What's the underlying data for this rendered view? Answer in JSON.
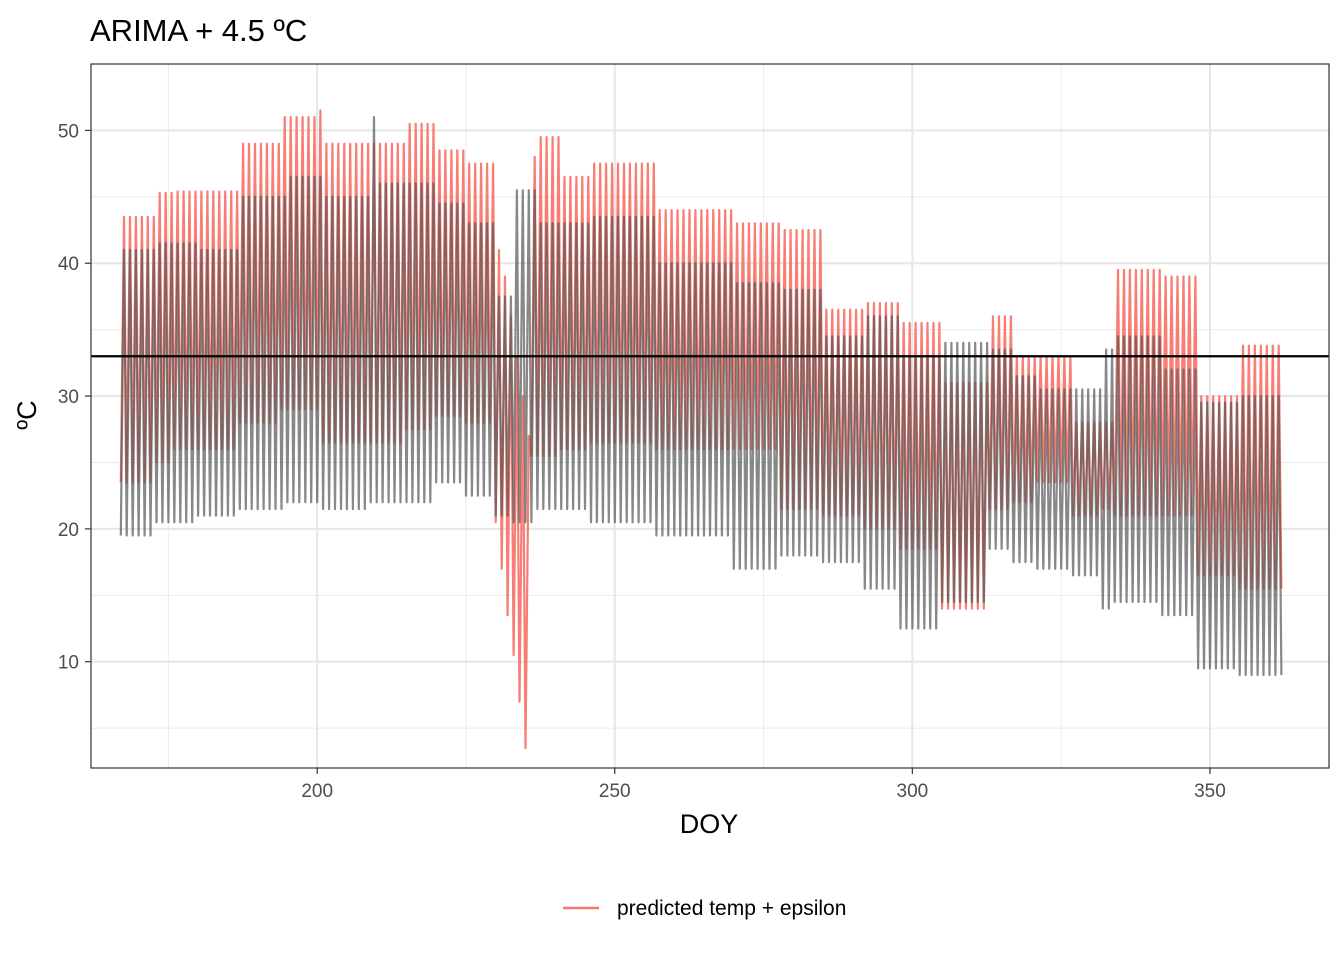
{
  "chart_data": {
    "type": "line",
    "title": "ARIMA + 4.5 ºC",
    "xlabel": "DOY",
    "ylabel": "ºC",
    "xlim": [
      162,
      370
    ],
    "ylim": [
      2,
      55
    ],
    "x_ticks": [
      200,
      250,
      300,
      350
    ],
    "y_ticks": [
      10,
      20,
      30,
      40,
      50
    ],
    "grid": true,
    "legend_position": "bottom",
    "reference_line": {
      "y": 33,
      "color": "#000000"
    },
    "colors": {
      "observed": "#555555",
      "predicted": "#f8766d"
    },
    "series": [
      {
        "name": "predicted temp + epsilon",
        "color": "#f8766d",
        "cycle_days": 1,
        "segments": [
          {
            "x_start": 167,
            "x_end": 173,
            "daily_max": 43.5,
            "daily_min": 23.5
          },
          {
            "x_start": 173,
            "x_end": 176,
            "daily_max": 45.3,
            "daily_min": 25.0
          },
          {
            "x_start": 176,
            "x_end": 187,
            "daily_max": 45.4,
            "daily_min": 26.0
          },
          {
            "x_start": 187,
            "x_end": 194,
            "daily_max": 49.0,
            "daily_min": 28.0
          },
          {
            "x_start": 194,
            "x_end": 200,
            "daily_max": 51.0,
            "daily_min": 29.0
          },
          {
            "x_start": 200,
            "x_end": 201,
            "daily_max": 51.5,
            "daily_min": 29.0
          },
          {
            "x_start": 201,
            "x_end": 215,
            "daily_max": 49.0,
            "daily_min": 26.5
          },
          {
            "x_start": 215,
            "x_end": 220,
            "daily_max": 50.5,
            "daily_min": 27.5
          },
          {
            "x_start": 220,
            "x_end": 225,
            "daily_max": 48.5,
            "daily_min": 28.5
          },
          {
            "x_start": 225,
            "x_end": 230,
            "daily_max": 47.5,
            "daily_min": 28.0
          },
          {
            "x_start": 230,
            "x_end": 231,
            "daily_max": 41.0,
            "daily_min": 20.5
          },
          {
            "x_start": 231,
            "x_end": 232,
            "daily_max": 39.0,
            "daily_min": 17.0
          },
          {
            "x_start": 232,
            "x_end": 233,
            "daily_max": 36.0,
            "daily_min": 13.5
          },
          {
            "x_start": 233,
            "x_end": 234,
            "daily_max": 33.0,
            "daily_min": 10.5
          },
          {
            "x_start": 234,
            "x_end": 235,
            "daily_max": 30.0,
            "daily_min": 7.0
          },
          {
            "x_start": 235,
            "x_end": 236,
            "daily_max": 27.0,
            "daily_min": 3.5
          },
          {
            "x_start": 236,
            "x_end": 237,
            "daily_max": 48.0,
            "daily_min": 25.5
          },
          {
            "x_start": 237,
            "x_end": 241,
            "daily_max": 49.5,
            "daily_min": 25.5
          },
          {
            "x_start": 241,
            "x_end": 246,
            "daily_max": 46.5,
            "daily_min": 26.0
          },
          {
            "x_start": 246,
            "x_end": 257,
            "daily_max": 47.5,
            "daily_min": 26.5
          },
          {
            "x_start": 257,
            "x_end": 270,
            "daily_max": 44.0,
            "daily_min": 26.0
          },
          {
            "x_start": 270,
            "x_end": 278,
            "daily_max": 43.0,
            "daily_min": 26.0
          },
          {
            "x_start": 278,
            "x_end": 285,
            "daily_max": 42.5,
            "daily_min": 21.5
          },
          {
            "x_start": 285,
            "x_end": 292,
            "daily_max": 36.5,
            "daily_min": 21.0
          },
          {
            "x_start": 292,
            "x_end": 298,
            "daily_max": 37.0,
            "daily_min": 20.0
          },
          {
            "x_start": 298,
            "x_end": 305,
            "daily_max": 35.5,
            "daily_min": 18.5
          },
          {
            "x_start": 305,
            "x_end": 313,
            "daily_max": 31.0,
            "daily_min": 14.0
          },
          {
            "x_start": 313,
            "x_end": 317,
            "daily_max": 36.0,
            "daily_min": 21.5
          },
          {
            "x_start": 317,
            "x_end": 321,
            "daily_max": 33.0,
            "daily_min": 22.0
          },
          {
            "x_start": 321,
            "x_end": 327,
            "daily_max": 33.0,
            "daily_min": 23.5
          },
          {
            "x_start": 327,
            "x_end": 332,
            "daily_max": 28.0,
            "daily_min": 21.0
          },
          {
            "x_start": 332,
            "x_end": 334,
            "daily_max": 28.0,
            "daily_min": 21.5
          },
          {
            "x_start": 334,
            "x_end": 342,
            "daily_max": 39.5,
            "daily_min": 21.0
          },
          {
            "x_start": 342,
            "x_end": 348,
            "daily_max": 39.0,
            "daily_min": 21.0
          },
          {
            "x_start": 348,
            "x_end": 355,
            "daily_max": 30.0,
            "daily_min": 16.5
          },
          {
            "x_start": 355,
            "x_end": 362,
            "daily_max": 33.8,
            "daily_min": 15.5
          }
        ]
      },
      {
        "color": "#555555",
        "cycle_days": 1,
        "segments": [
          {
            "x_start": 167,
            "x_end": 173,
            "daily_max": 41.0,
            "daily_min": 19.5
          },
          {
            "x_start": 173,
            "x_end": 180,
            "daily_max": 41.5,
            "daily_min": 20.5
          },
          {
            "x_start": 180,
            "x_end": 187,
            "daily_max": 41.0,
            "daily_min": 21.0
          },
          {
            "x_start": 187,
            "x_end": 195,
            "daily_max": 45.0,
            "daily_min": 21.5
          },
          {
            "x_start": 195,
            "x_end": 201,
            "daily_max": 46.5,
            "daily_min": 22.0
          },
          {
            "x_start": 201,
            "x_end": 209,
            "daily_max": 45.0,
            "daily_min": 21.5
          },
          {
            "x_start": 209,
            "x_end": 210,
            "daily_max": 51.0,
            "daily_min": 22.0
          },
          {
            "x_start": 210,
            "x_end": 220,
            "daily_max": 46.0,
            "daily_min": 22.0
          },
          {
            "x_start": 220,
            "x_end": 225,
            "daily_max": 44.5,
            "daily_min": 23.5
          },
          {
            "x_start": 225,
            "x_end": 230,
            "daily_max": 43.0,
            "daily_min": 22.5
          },
          {
            "x_start": 230,
            "x_end": 233,
            "daily_max": 37.5,
            "daily_min": 21.0
          },
          {
            "x_start": 233,
            "x_end": 237,
            "daily_max": 45.5,
            "daily_min": 20.5
          },
          {
            "x_start": 237,
            "x_end": 246,
            "daily_max": 43.0,
            "daily_min": 21.5
          },
          {
            "x_start": 246,
            "x_end": 257,
            "daily_max": 43.5,
            "daily_min": 20.5
          },
          {
            "x_start": 257,
            "x_end": 270,
            "daily_max": 40.0,
            "daily_min": 19.5
          },
          {
            "x_start": 270,
            "x_end": 278,
            "daily_max": 38.5,
            "daily_min": 17.0
          },
          {
            "x_start": 278,
            "x_end": 285,
            "daily_max": 38.0,
            "daily_min": 18.0
          },
          {
            "x_start": 285,
            "x_end": 292,
            "daily_max": 34.5,
            "daily_min": 17.5
          },
          {
            "x_start": 292,
            "x_end": 298,
            "daily_max": 36.0,
            "daily_min": 15.5
          },
          {
            "x_start": 298,
            "x_end": 305,
            "daily_max": 33.0,
            "daily_min": 12.5
          },
          {
            "x_start": 305,
            "x_end": 313,
            "daily_max": 34.0,
            "daily_min": 14.5
          },
          {
            "x_start": 313,
            "x_end": 317,
            "daily_max": 33.5,
            "daily_min": 18.5
          },
          {
            "x_start": 317,
            "x_end": 321,
            "daily_max": 31.5,
            "daily_min": 17.5
          },
          {
            "x_start": 321,
            "x_end": 327,
            "daily_max": 30.5,
            "daily_min": 17.0
          },
          {
            "x_start": 327,
            "x_end": 332,
            "daily_max": 30.5,
            "daily_min": 16.5
          },
          {
            "x_start": 332,
            "x_end": 334,
            "daily_max": 33.5,
            "daily_min": 14.0
          },
          {
            "x_start": 334,
            "x_end": 342,
            "daily_max": 34.5,
            "daily_min": 14.5
          },
          {
            "x_start": 342,
            "x_end": 348,
            "daily_max": 32.0,
            "daily_min": 13.5
          },
          {
            "x_start": 348,
            "x_end": 355,
            "daily_max": 29.5,
            "daily_min": 9.5
          },
          {
            "x_start": 355,
            "x_end": 362,
            "daily_max": 30.0,
            "daily_min": 9.0
          }
        ]
      }
    ]
  }
}
